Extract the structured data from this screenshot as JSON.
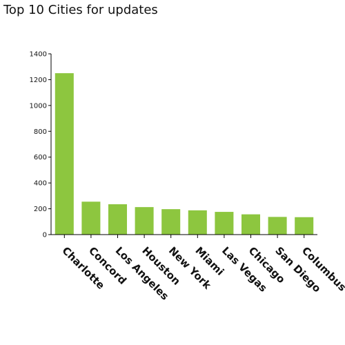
{
  "page": {
    "title": "Top 10 Cities for updates"
  },
  "colors": {
    "bar": "#8dc63f",
    "axis": "#000000",
    "text": "#111111"
  },
  "chart_data": {
    "type": "bar",
    "title": "Top 10 Cities for updates",
    "xlabel": "",
    "ylabel": "",
    "categories": [
      "Charlotte",
      "Concord",
      "Los Angeles",
      "Houston",
      "New York",
      "Miami",
      "Las Vegas",
      "Chicago",
      "San Diego",
      "Columbus"
    ],
    "values": [
      1250,
      255,
      235,
      213,
      197,
      188,
      176,
      157,
      137,
      135
    ],
    "ylim": [
      0,
      1400
    ],
    "yticks": [
      0,
      200,
      400,
      600,
      800,
      1000,
      1200,
      1400
    ],
    "grid": false,
    "legend": "none"
  }
}
